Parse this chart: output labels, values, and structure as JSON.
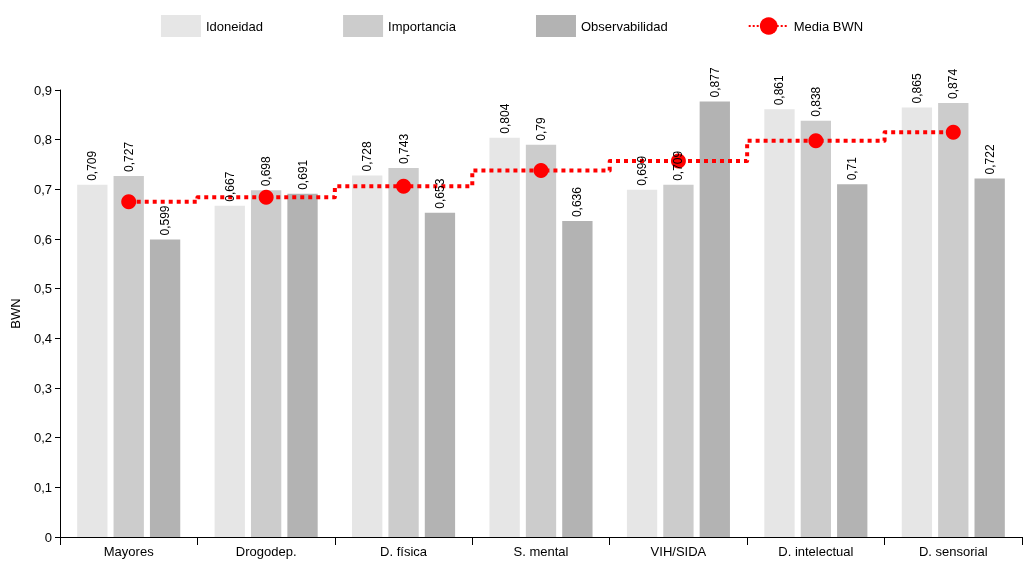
{
  "chart_data": {
    "type": "bar",
    "ylabel": "BWN",
    "categories": [
      "Mayores",
      "Drogodep.",
      "D. física",
      "S. mental",
      "VIH/SIDA",
      "D. intelectual",
      "D. sensorial"
    ],
    "series": [
      {
        "name": "Idoneidad",
        "color": "#e6e6e6",
        "values": [
          0.709,
          0.667,
          0.728,
          0.804,
          0.699,
          0.861,
          0.865
        ],
        "value_labels": [
          "0,709",
          "0,667",
          "0,728",
          "0,804",
          "0,699",
          "0,861",
          "0,865"
        ]
      },
      {
        "name": "Importancia",
        "color": "#cccccc",
        "values": [
          0.727,
          0.698,
          0.743,
          0.79,
          0.709,
          0.838,
          0.874
        ],
        "value_labels": [
          "0,727",
          "0,698",
          "0,743",
          "0,79",
          "0,709",
          "0,838",
          "0,874"
        ]
      },
      {
        "name": "Observabilidad",
        "color": "#b3b3b3",
        "values": [
          0.599,
          0.691,
          0.653,
          0.636,
          0.877,
          0.71,
          0.722
        ],
        "value_labels": [
          "0,599",
          "0,691",
          "0,653",
          "0,636",
          "0,877",
          "0,71",
          "0,722"
        ]
      },
      {
        "name": "Media BWN",
        "type": "step",
        "color": "#ff0000",
        "marker": "circle",
        "line_style": "dotted",
        "values": [
          0.675,
          0.684,
          0.706,
          0.738,
          0.757,
          0.798,
          0.815
        ]
      }
    ],
    "ylim": [
      0,
      0.9
    ],
    "yticks": [
      {
        "value": 0,
        "label": "0"
      },
      {
        "value": 0.1,
        "label": "0,1"
      },
      {
        "value": 0.2,
        "label": "0,2"
      },
      {
        "value": 0.3,
        "label": "0,3"
      },
      {
        "value": 0.4,
        "label": "0,4"
      },
      {
        "value": 0.5,
        "label": "0,5"
      },
      {
        "value": 0.6,
        "label": "0,6"
      },
      {
        "value": 0.7,
        "label": "0,7"
      },
      {
        "value": 0.8,
        "label": "0,8"
      },
      {
        "value": 0.9,
        "label": "0,9"
      }
    ],
    "grid": false,
    "legend": "top"
  }
}
